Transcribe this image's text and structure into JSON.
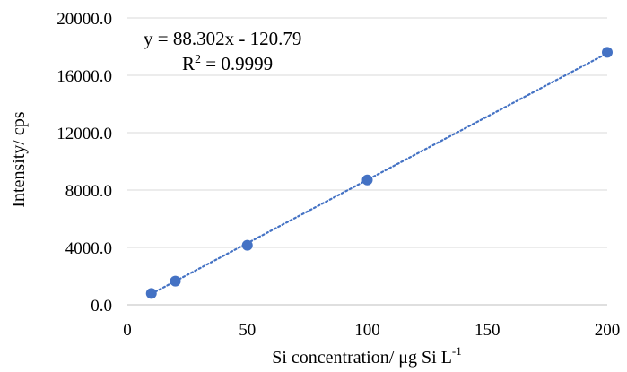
{
  "chart_data": {
    "type": "scatter",
    "series": [
      {
        "x": [
          10,
          20,
          50,
          100,
          200
        ],
        "y": [
          790,
          1650,
          4150,
          8700,
          17600
        ],
        "color": "#4472C4",
        "trendline": {
          "slope": 88.302,
          "intercept": -120.79,
          "style": "dotted"
        }
      }
    ],
    "xlabel": "Si concentration/ μg Si L",
    "xlabel_superscript": "-1",
    "ylabel": "Intensity/ cps",
    "xlim": [
      0,
      200
    ],
    "ylim": [
      0,
      20000
    ],
    "xticks": [
      "0",
      "50",
      "100",
      "150",
      "200"
    ],
    "yticks": [
      "0.0",
      "4000.0",
      "8000.0",
      "12000.0",
      "16000.0",
      "20000.0"
    ],
    "grid": "horizontal",
    "annotations": {
      "equation": "y = 88.302x - 120.79",
      "r2_base": "R",
      "r2_sup": "2",
      "r2_value": " = 0.9999"
    }
  }
}
